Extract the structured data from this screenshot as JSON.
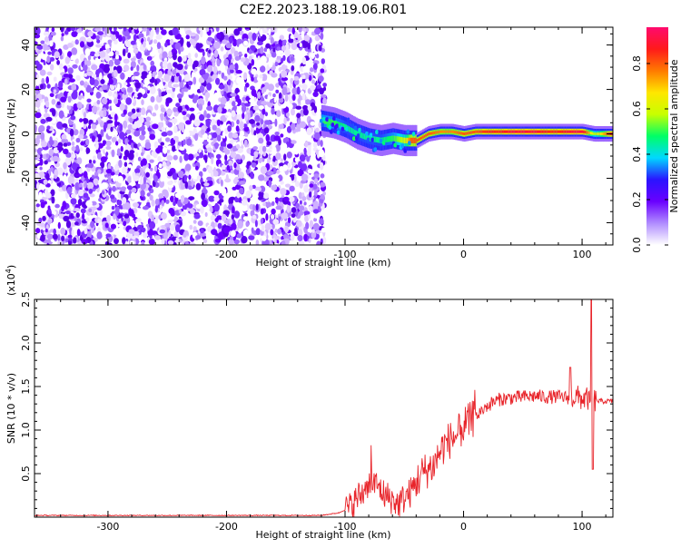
{
  "page": {
    "title": "C2E2.2023.188.19.06.R01"
  },
  "colorbar": {
    "label": "Normalized spectral amplitude",
    "ticks": [
      0.0,
      0.2,
      0.4,
      0.6,
      0.8
    ],
    "tick_labels": [
      "0.0",
      "0.2",
      "0.4",
      "0.6",
      "0.8"
    ],
    "range": [
      0.0,
      0.96
    ],
    "gradient": [
      "#ffffff",
      "#b08cff",
      "#6a00ff",
      "#2a14ff",
      "#00d8ff",
      "#00ff66",
      "#c8ff00",
      "#ffe600",
      "#ff7a00",
      "#ff1a1a",
      "#ff0a6e"
    ]
  },
  "chart_data": [
    {
      "type": "heatmap",
      "title": "C2E2.2023.188.19.06.R01",
      "xlabel": "Height of straight line (km)",
      "ylabel": "Frequency (Hz)",
      "xlim": [
        -362,
        126
      ],
      "ylim": [
        -50,
        48
      ],
      "xticks": [
        -300,
        -200,
        -100,
        0,
        100
      ],
      "xtick_labels": [
        "-300",
        "-200",
        "-100",
        "0",
        "100"
      ],
      "yticks": [
        -40,
        -20,
        0,
        20,
        40
      ],
      "ytick_labels": [
        "-40",
        "-20",
        "0",
        "20",
        "40"
      ],
      "grid": false,
      "noise_region_x": [
        -362,
        -117
      ],
      "ridge": {
        "x": [
          -120,
          -110,
          -100,
          -90,
          -80,
          -70,
          -60,
          -50,
          -45,
          -40,
          -30,
          -20,
          -10,
          0,
          10,
          20,
          30,
          40,
          50,
          60,
          70,
          80,
          90,
          100,
          110,
          126
        ],
        "y": [
          6,
          5,
          3,
          0,
          -2,
          -3,
          -2,
          -3,
          -3,
          -3,
          0,
          1,
          1,
          0,
          1,
          1,
          1,
          1,
          1,
          1,
          1,
          1,
          1,
          1,
          0,
          0
        ],
        "peak_amplitude": [
          0.5,
          0.5,
          0.45,
          0.45,
          0.45,
          0.45,
          0.5,
          0.6,
          0.8,
          0.8,
          0.8,
          0.75,
          0.75,
          0.8,
          0.8,
          0.85,
          0.85,
          0.9,
          0.9,
          0.9,
          0.85,
          0.85,
          0.9,
          0.9,
          0.55,
          0.9
        ]
      }
    },
    {
      "type": "line",
      "xlabel": "Height of straight line (km)",
      "ylabel": "SNR (10 * v/v)",
      "y_scale_label": "(x10",
      "y_scale_exponent": "4",
      "y_scale_suffix": ")",
      "xlim": [
        -362,
        126
      ],
      "ylim": [
        0,
        2.5
      ],
      "xticks": [
        -300,
        -200,
        -100,
        0,
        100
      ],
      "xtick_labels": [
        "-300",
        "-200",
        "-100",
        "0",
        "100"
      ],
      "yticks": [
        0.5,
        1.0,
        1.5,
        2.0,
        2.5
      ],
      "ytick_labels": [
        "0.5",
        "1.0",
        "1.5",
        "2.0",
        "2.5"
      ],
      "grid": false,
      "series": [
        {
          "color": "#e8242a",
          "x": [
            -362,
            -300,
            -200,
            -120,
            -105,
            -95,
            -88,
            -82,
            -78,
            -72,
            -66,
            -60,
            -55,
            -50,
            -45,
            -40,
            -35,
            -30,
            -25,
            -20,
            -15,
            -10,
            -5,
            0,
            5,
            10,
            15,
            20,
            25,
            30,
            40,
            50,
            60,
            70,
            80,
            90,
            95,
            100,
            105,
            108,
            110,
            112,
            115,
            120,
            126
          ],
          "y": [
            0.02,
            0.02,
            0.02,
            0.02,
            0.05,
            0.12,
            0.25,
            0.3,
            0.4,
            0.35,
            0.25,
            0.2,
            0.15,
            0.22,
            0.28,
            0.4,
            0.5,
            0.55,
            0.6,
            0.75,
            0.85,
            0.9,
            0.95,
            1.05,
            1.1,
            1.15,
            1.22,
            1.28,
            1.32,
            1.35,
            1.37,
            1.38,
            1.39,
            1.38,
            1.38,
            1.37,
            1.38,
            1.36,
            1.36,
            1.2,
            1.34,
            1.34,
            1.33,
            1.33,
            1.33
          ]
        }
      ]
    }
  ]
}
